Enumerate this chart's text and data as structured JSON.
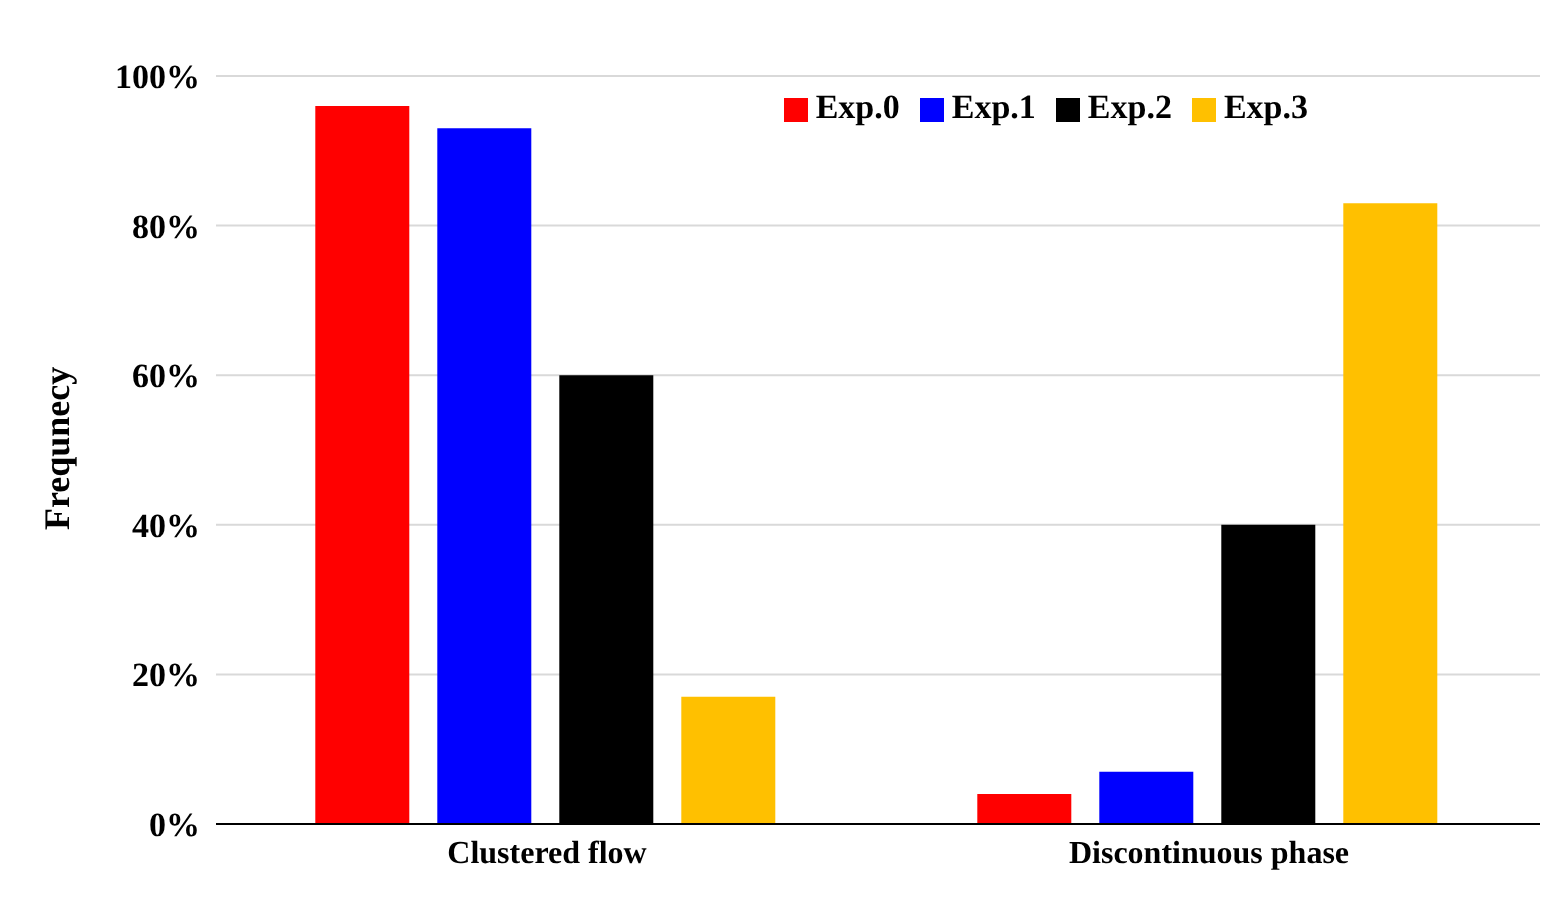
{
  "chart_data": {
    "type": "bar",
    "ylabel": "Frequnecy",
    "categories": [
      "Clustered flow",
      "Discontinuous phase"
    ],
    "series": [
      {
        "name": "Exp.0",
        "color": "#ff0000",
        "values": [
          96,
          4
        ]
      },
      {
        "name": "Exp.1",
        "color": "#0000ff",
        "values": [
          93,
          7
        ]
      },
      {
        "name": "Exp.2",
        "color": "#000000",
        "values": [
          60,
          40
        ]
      },
      {
        "name": "Exp.3",
        "color": "#ffc000",
        "values": [
          17,
          83
        ]
      }
    ],
    "ylim": [
      0,
      100
    ],
    "yticks": [
      {
        "value": 0,
        "label": "0%"
      },
      {
        "value": 20,
        "label": "20%"
      },
      {
        "value": 40,
        "label": "40%"
      },
      {
        "value": 60,
        "label": "60%"
      },
      {
        "value": 80,
        "label": "80%"
      },
      {
        "value": 100,
        "label": "100%"
      }
    ],
    "grid": "y",
    "legend": "top right"
  }
}
